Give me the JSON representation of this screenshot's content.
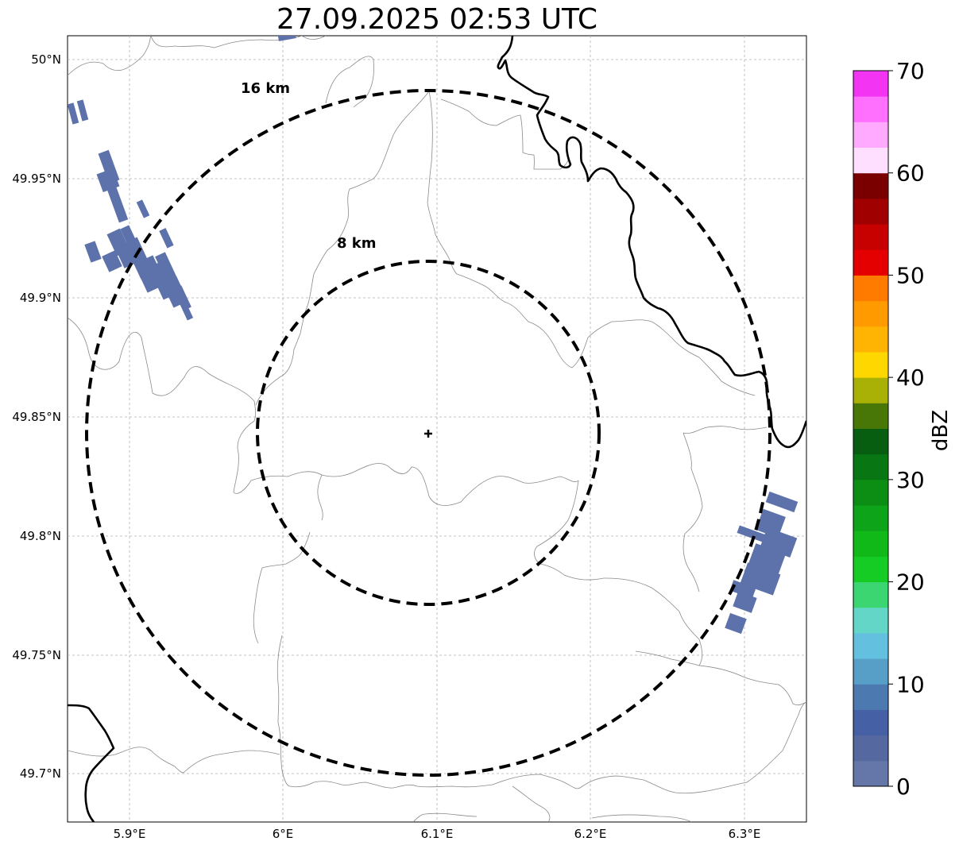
{
  "title": "27.09.2025 02:53 UTC",
  "map": {
    "lat_ticks": [
      "50°N",
      "49.95°N",
      "49.9°N",
      "49.85°N",
      "49.8°N",
      "49.75°N",
      "49.7°N"
    ],
    "lon_ticks": [
      "5.9°E",
      "6°E",
      "6.1°E",
      "6.2°E",
      "6.3°E"
    ],
    "range_rings": [
      {
        "label": "8 km",
        "radius_km": 8
      },
      {
        "label": "16 km",
        "radius_km": 16
      }
    ],
    "radar_site": "center-marker",
    "grid": true
  },
  "colorbar": {
    "label": "dBZ",
    "ticks": [
      "0",
      "10",
      "20",
      "30",
      "40",
      "50",
      "60",
      "70"
    ],
    "colors": [
      "#6577a8",
      "#5668a0",
      "#4660a6",
      "#4c7ab0",
      "#579fc7",
      "#63c0de",
      "#64d6c7",
      "#3bd671",
      "#14cc24",
      "#10b917",
      "#0ea419",
      "#0c8e15",
      "#087713",
      "#075e10",
      "#497707",
      "#a9b107",
      "#ffd700",
      "#ffb403",
      "#ff9a00",
      "#ff7b00",
      "#e40000",
      "#c70000",
      "#a00000",
      "#7a0000",
      "#ffdfff",
      "#ffaaff",
      "#ff70ff",
      "#f335f3"
    ]
  },
  "echo_color": "#5d72aa"
}
